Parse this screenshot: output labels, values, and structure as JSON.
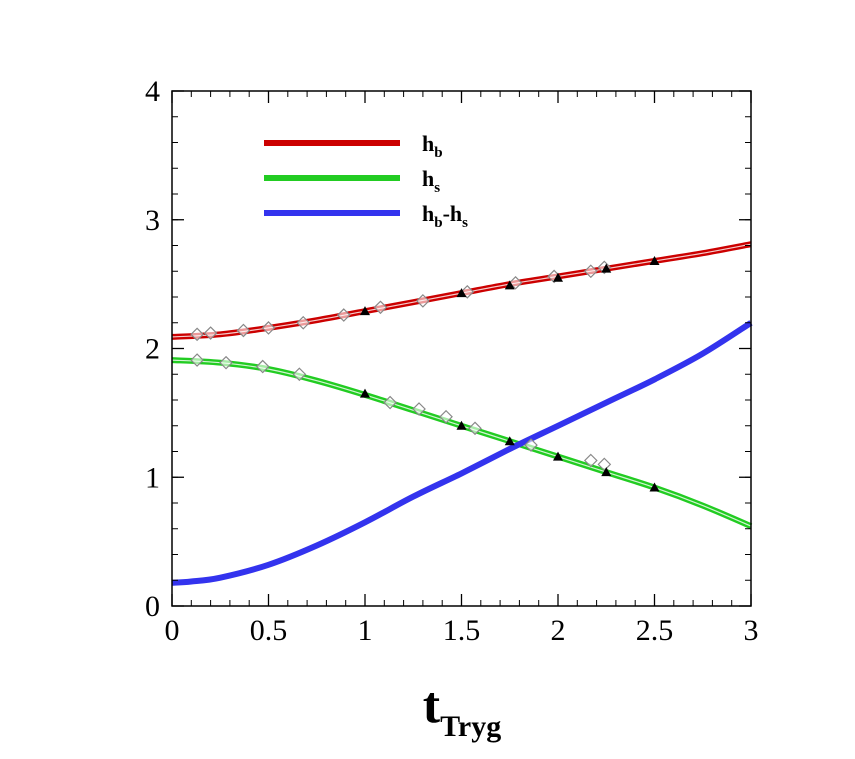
{
  "chart_data": {
    "type": "line",
    "title": "",
    "xlabel": "t",
    "xlabel_subscript": "Tryg",
    "ylabel": "",
    "xlim": [
      0,
      3
    ],
    "ylim": [
      0,
      4
    ],
    "x_ticks": [
      0,
      0.5,
      1,
      1.5,
      2,
      2.5,
      3
    ],
    "x_tick_labels": [
      "0",
      "0.5",
      "1",
      "1.5",
      "2",
      "2.5",
      "3"
    ],
    "y_ticks": [
      0,
      1,
      2,
      3,
      4
    ],
    "y_tick_labels": [
      "0",
      "1",
      "2",
      "3",
      "4"
    ],
    "grid": false,
    "legend_position": "top-left",
    "series": [
      {
        "name": "h",
        "name_sub": "b",
        "color": "#cc0000",
        "x": [
          0,
          0.25,
          0.5,
          0.75,
          1,
          1.25,
          1.5,
          1.75,
          2,
          2.25,
          2.5,
          2.75,
          3
        ],
        "y": [
          2.09,
          2.11,
          2.16,
          2.22,
          2.29,
          2.36,
          2.43,
          2.5,
          2.56,
          2.62,
          2.68,
          2.74,
          2.81
        ],
        "markers_triangle": {
          "x": [
            1,
            1.5,
            1.75,
            2,
            2.25,
            2.5
          ],
          "y": [
            2.29,
            2.43,
            2.49,
            2.55,
            2.62,
            2.68
          ]
        },
        "markers_diamond": {
          "x": [
            0.13,
            0.2,
            0.37,
            0.5,
            0.68,
            0.89,
            1.08,
            1.3,
            1.53,
            1.78,
            1.98,
            2.17,
            2.24
          ],
          "y": [
            2.11,
            2.12,
            2.14,
            2.16,
            2.2,
            2.26,
            2.32,
            2.37,
            2.44,
            2.51,
            2.56,
            2.6,
            2.63
          ]
        }
      },
      {
        "name": "h",
        "name_sub": "s",
        "color": "#22cc22",
        "x": [
          0,
          0.25,
          0.5,
          0.75,
          1,
          1.25,
          1.5,
          1.75,
          2,
          2.25,
          2.5,
          2.75,
          3
        ],
        "y": [
          1.91,
          1.89,
          1.84,
          1.75,
          1.64,
          1.52,
          1.4,
          1.28,
          1.16,
          1.04,
          0.92,
          0.78,
          0.62
        ],
        "markers_triangle": {
          "x": [
            1,
            1.5,
            1.75,
            2,
            2.25,
            2.5
          ],
          "y": [
            1.65,
            1.4,
            1.28,
            1.16,
            1.04,
            0.92
          ]
        },
        "markers_diamond": {
          "x": [
            0.13,
            0.28,
            0.47,
            0.66,
            1.13,
            1.28,
            1.42,
            1.57,
            1.86,
            2.17,
            2.24
          ],
          "y": [
            1.91,
            1.89,
            1.86,
            1.8,
            1.58,
            1.53,
            1.47,
            1.38,
            1.25,
            1.13,
            1.1
          ]
        }
      },
      {
        "name": "h",
        "name_sub": "b",
        "name_suffix": "-h",
        "name_suffix_sub": "s",
        "color": "#3333ee",
        "x": [
          0,
          0.1,
          0.25,
          0.5,
          0.75,
          1,
          1.25,
          1.5,
          1.75,
          2,
          2.25,
          2.5,
          2.75,
          3
        ],
        "y": [
          0.18,
          0.19,
          0.22,
          0.32,
          0.47,
          0.65,
          0.85,
          1.03,
          1.22,
          1.4,
          1.58,
          1.76,
          1.96,
          2.2
        ]
      }
    ]
  }
}
